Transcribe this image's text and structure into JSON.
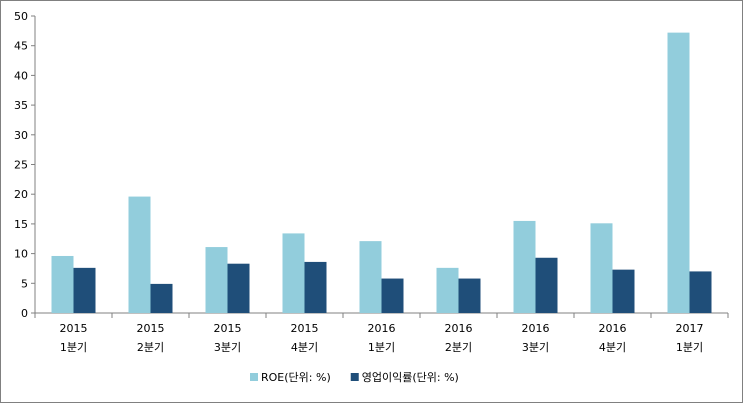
{
  "chart_data": {
    "type": "bar",
    "categories": [
      [
        "2015",
        "1분기"
      ],
      [
        "2015",
        "2분기"
      ],
      [
        "2015",
        "3분기"
      ],
      [
        "2015",
        "4분기"
      ],
      [
        "2016",
        "1분기"
      ],
      [
        "2016",
        "2분기"
      ],
      [
        "2016",
        "3분기"
      ],
      [
        "2016",
        "4분기"
      ],
      [
        "2017",
        "1분기"
      ]
    ],
    "series": [
      {
        "name": "ROE(단위: %)",
        "color": "#92cddc",
        "values": [
          9.6,
          19.6,
          11.1,
          13.4,
          12.1,
          7.6,
          15.5,
          15.1,
          47.2
        ]
      },
      {
        "name": "영업이익률(단위: %)",
        "color": "#1f4e79",
        "values": [
          7.6,
          4.9,
          8.3,
          8.6,
          5.8,
          5.8,
          9.3,
          7.3,
          7.0
        ]
      }
    ],
    "ylim": [
      0,
      50
    ],
    "yticks": [
      0,
      5,
      10,
      15,
      20,
      25,
      30,
      35,
      40,
      45,
      50
    ],
    "grid": false,
    "legend": "bottom",
    "title": "",
    "xlabel": "",
    "ylabel": ""
  }
}
